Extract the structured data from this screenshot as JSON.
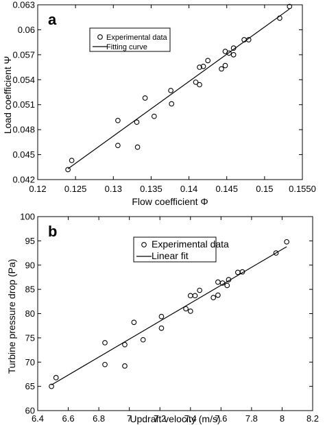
{
  "chart_data": [
    {
      "type": "scatter",
      "panel_label": "a",
      "xlabel": "Flow coefficient Φ",
      "ylabel": "Load coefficient Ψ",
      "xlim": [
        0.12,
        0.155
      ],
      "ylim": [
        0.042,
        0.063
      ],
      "xticks": [
        0.12,
        0.125,
        0.13,
        0.135,
        0.14,
        0.145,
        0.15,
        0.155
      ],
      "xtick_labels": [
        "0.12",
        "0.125",
        "0.13",
        "0.135",
        "0.14",
        "0.145",
        "0.15",
        "0.1550"
      ],
      "yticks": [
        0.042,
        0.045,
        0.048,
        0.051,
        0.054,
        0.057,
        0.06,
        0.063
      ],
      "ytick_labels": [
        "0.042",
        "0.045",
        "0.048",
        "0.051",
        "0.054",
        "0.057",
        "0.06",
        "0.063"
      ],
      "legend": {
        "position": "upper-left",
        "points_label": "Experimental data",
        "line_label": "Fitting curve"
      },
      "series": [
        {
          "name": "Experimental data",
          "kind": "points",
          "x": [
            0.124,
            0.1245,
            0.1306,
            0.1306,
            0.1331,
            0.1332,
            0.1342,
            0.1354,
            0.1376,
            0.1377,
            0.1409,
            0.1414,
            0.1414,
            0.1419,
            0.1425,
            0.1443,
            0.1448,
            0.1448,
            0.1453,
            0.1459,
            0.1459,
            0.1473,
            0.1479,
            0.152,
            0.1533
          ],
          "y": [
            0.0432,
            0.0443,
            0.0491,
            0.0461,
            0.0489,
            0.0459,
            0.0518,
            0.0496,
            0.0527,
            0.0511,
            0.0537,
            0.0534,
            0.0555,
            0.0556,
            0.0563,
            0.0553,
            0.0557,
            0.0574,
            0.0572,
            0.057,
            0.0578,
            0.0588,
            0.0588,
            0.0614,
            0.0628
          ]
        },
        {
          "name": "Fitting curve",
          "kind": "line",
          "x": [
            0.124,
            0.1533
          ],
          "y": [
            0.0433,
            0.0625
          ]
        }
      ]
    },
    {
      "type": "scatter",
      "panel_label": "b",
      "xlabel": "Updraft velocity (m/s)",
      "ylabel": "Turbine pressure drop (Pa)",
      "xlim": [
        6.4,
        8.2
      ],
      "ylim": [
        60,
        100
      ],
      "xticks": [
        6.4,
        6.6,
        6.8,
        7.0,
        7.2,
        7.4,
        7.6,
        7.8,
        8.0,
        8.2
      ],
      "xtick_labels": [
        "6.4",
        "6.6",
        "6.8",
        "7",
        "7.2",
        "7.4",
        "7.6",
        "7.8",
        "8",
        "8.2"
      ],
      "yticks": [
        60,
        65,
        70,
        75,
        80,
        85,
        90,
        95,
        100
      ],
      "ytick_labels": [
        "60",
        "65",
        "70",
        "75",
        "80",
        "85",
        "90",
        "95",
        "100"
      ],
      "legend": {
        "position": "upper-left",
        "points_label": "Experimental data",
        "line_label": "Linear fit"
      },
      "series": [
        {
          "name": "Experimental data",
          "kind": "points",
          "x": [
            6.49,
            6.52,
            6.84,
            6.84,
            6.97,
            6.97,
            7.03,
            7.09,
            7.21,
            7.21,
            7.37,
            7.4,
            7.4,
            7.43,
            7.46,
            7.55,
            7.58,
            7.58,
            7.61,
            7.64,
            7.65,
            7.71,
            7.74,
            7.96,
            8.03
          ],
          "y": [
            65.0,
            66.8,
            74.0,
            69.5,
            73.6,
            69.2,
            78.2,
            74.6,
            79.4,
            77.0,
            81.0,
            80.5,
            83.7,
            83.7,
            84.8,
            83.3,
            83.8,
            86.5,
            86.3,
            85.8,
            87.0,
            88.5,
            88.6,
            92.5,
            94.8
          ]
        },
        {
          "name": "Linear fit",
          "kind": "line",
          "x": [
            6.49,
            8.03
          ],
          "y": [
            65.3,
            93.8
          ]
        }
      ]
    }
  ]
}
